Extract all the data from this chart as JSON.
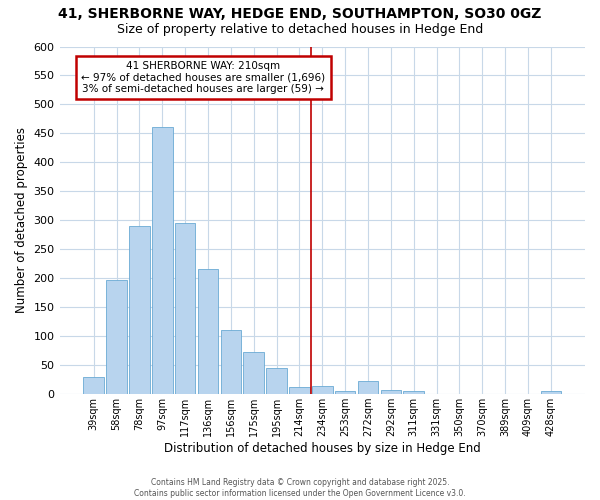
{
  "title1": "41, SHERBORNE WAY, HEDGE END, SOUTHAMPTON, SO30 0GZ",
  "title2": "Size of property relative to detached houses in Hedge End",
  "xlabel": "Distribution of detached houses by size in Hedge End",
  "ylabel": "Number of detached properties",
  "annotation_line1": "41 SHERBORNE WAY: 210sqm",
  "annotation_line2": "← 97% of detached houses are smaller (1,696)",
  "annotation_line3": "3% of semi-detached houses are larger (59) →",
  "footer1": "Contains HM Land Registry data © Crown copyright and database right 2025.",
  "footer2": "Contains public sector information licensed under the Open Government Licence v3.0.",
  "categories": [
    "39sqm",
    "58sqm",
    "78sqm",
    "97sqm",
    "117sqm",
    "136sqm",
    "156sqm",
    "175sqm",
    "195sqm",
    "214sqm",
    "234sqm",
    "253sqm",
    "272sqm",
    "292sqm",
    "311sqm",
    "331sqm",
    "350sqm",
    "370sqm",
    "389sqm",
    "409sqm",
    "428sqm"
  ],
  "values": [
    30,
    197,
    290,
    461,
    295,
    216,
    110,
    72,
    46,
    12,
    14,
    5,
    22,
    8,
    5,
    0,
    0,
    0,
    0,
    0,
    5
  ],
  "bar_color": "#b8d4ee",
  "bar_edge_color": "#6aaad4",
  "vline_color": "#c00000",
  "vline_x": 9.5,
  "annotation_box_color": "#c00000",
  "ylim": [
    0,
    600
  ],
  "yticks": [
    0,
    50,
    100,
    150,
    200,
    250,
    300,
    350,
    400,
    450,
    500,
    550,
    600
  ],
  "bg_color": "#ffffff",
  "plot_bg_color": "#ffffff",
  "grid_color": "#c8d8e8",
  "title_fontsize": 10,
  "subtitle_fontsize": 9
}
